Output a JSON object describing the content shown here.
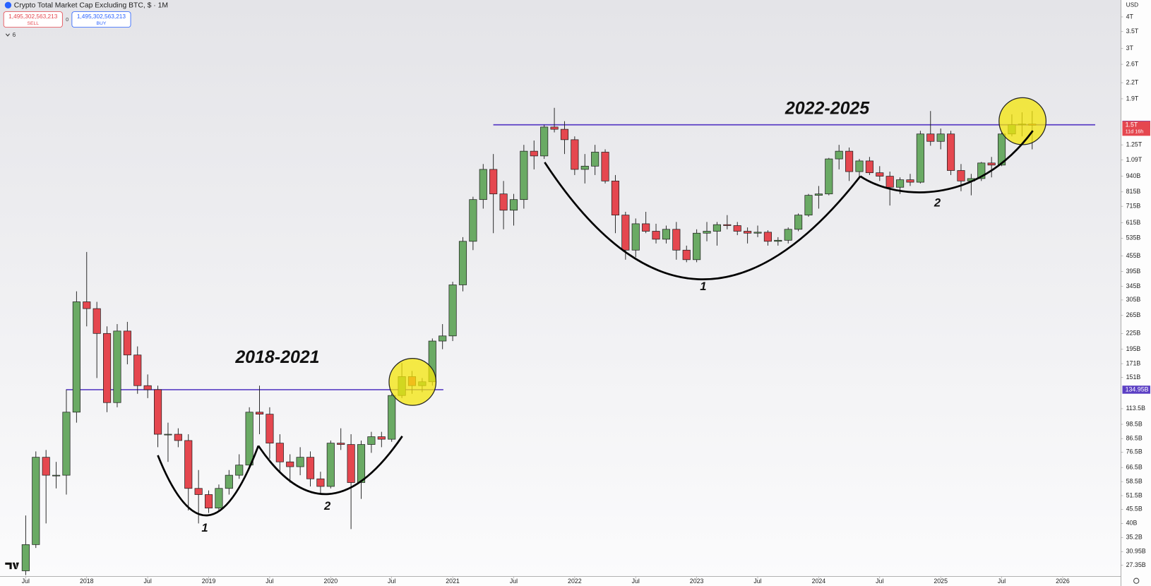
{
  "header": {
    "title": "Crypto Total Market Cap Excluding BTC, $ · 1M",
    "sell_price": "1,495,302,563,213",
    "sell_label": "SELL",
    "spread": "0",
    "buy_price": "1,495,302,563,213",
    "buy_label": "BUY",
    "indicators": "6"
  },
  "currency": "USD",
  "chart_data": {
    "type": "candlestick",
    "log_scale": true,
    "grid": false,
    "up_color": "#6aaa64",
    "down_color": "#e5474f",
    "border_color": "#1e1e1e",
    "x": [
      "2017-07",
      "2017-08",
      "2017-09",
      "2017-10",
      "2017-11",
      "2017-12",
      "2018-01",
      "2018-02",
      "2018-03",
      "2018-04",
      "2018-05",
      "2018-06",
      "2018-07",
      "2018-08",
      "2018-09",
      "2018-10",
      "2018-11",
      "2018-12",
      "2019-01",
      "2019-02",
      "2019-03",
      "2019-04",
      "2019-05",
      "2019-06",
      "2019-07",
      "2019-08",
      "2019-09",
      "2019-10",
      "2019-11",
      "2019-12",
      "2020-01",
      "2020-02",
      "2020-03",
      "2020-04",
      "2020-05",
      "2020-06",
      "2020-07",
      "2020-08",
      "2020-09",
      "2020-10",
      "2020-11",
      "2020-12",
      "2021-01",
      "2021-02",
      "2021-03",
      "2021-04",
      "2021-05",
      "2021-06",
      "2021-07",
      "2021-08",
      "2021-09",
      "2021-10",
      "2021-11",
      "2021-12",
      "2022-01",
      "2022-02",
      "2022-03",
      "2022-04",
      "2022-05",
      "2022-06",
      "2022-07",
      "2022-08",
      "2022-09",
      "2022-10",
      "2022-11",
      "2022-12",
      "2023-01",
      "2023-02",
      "2023-03",
      "2023-04",
      "2023-05",
      "2023-06",
      "2023-07",
      "2023-08",
      "2023-09",
      "2023-10",
      "2023-11",
      "2023-12",
      "2024-01",
      "2024-02",
      "2024-03",
      "2024-04",
      "2024-05",
      "2024-06",
      "2024-07",
      "2024-08",
      "2024-09",
      "2024-10",
      "2024-11",
      "2024-12",
      "2025-01",
      "2025-02",
      "2025-03",
      "2025-04",
      "2025-05",
      "2025-06",
      "2025-07",
      "2025-08",
      "2025-09",
      "2025-10"
    ],
    "open": [
      26,
      33,
      73,
      62,
      62,
      110,
      300,
      282,
      225,
      120,
      230,
      185,
      140,
      135,
      90,
      90,
      85,
      55,
      52,
      46,
      55,
      62,
      68,
      110,
      108,
      83,
      70,
      67,
      73,
      60,
      56,
      83,
      82,
      58,
      82,
      88,
      86,
      128,
      152,
      140,
      145,
      210,
      220,
      350,
      520,
      760,
      1000,
      800,
      690,
      760,
      1180,
      1130,
      1470,
      1440,
      1310,
      1000,
      1030,
      1170,
      900,
      660,
      480,
      610,
      570,
      530,
      580,
      480,
      440,
      560,
      570,
      605,
      600,
      570,
      560,
      565,
      520,
      525,
      580,
      660,
      790,
      800,
      1100,
      1180,
      980,
      1080,
      970,
      940,
      850,
      910,
      890,
      1380,
      1290,
      1380,
      990,
      900,
      920,
      1060,
      1040,
      1380,
      1500,
      1510
    ],
    "high": [
      43,
      77,
      78,
      70,
      135,
      330,
      472,
      300,
      240,
      245,
      250,
      200,
      155,
      140,
      100,
      95,
      90,
      65,
      54,
      57,
      65,
      75,
      115,
      140,
      115,
      90,
      75,
      80,
      77,
      64,
      85,
      95,
      90,
      85,
      92,
      92,
      130,
      172,
      160,
      150,
      215,
      245,
      360,
      540,
      780,
      1050,
      1150,
      900,
      800,
      1250,
      1300,
      1500,
      1750,
      1550,
      1350,
      1150,
      1250,
      1200,
      950,
      680,
      640,
      680,
      610,
      600,
      620,
      500,
      580,
      620,
      620,
      660,
      620,
      590,
      600,
      575,
      540,
      590,
      670,
      800,
      860,
      1110,
      1250,
      1220,
      1100,
      1120,
      1030,
      980,
      930,
      960,
      1420,
      1700,
      1450,
      1420,
      1050,
      960,
      1070,
      1120,
      1400,
      1650,
      1680,
      1700
    ],
    "low": [
      25,
      32,
      40,
      55,
      52,
      100,
      240,
      150,
      110,
      115,
      170,
      130,
      125,
      80,
      70,
      80,
      45,
      40,
      44,
      45,
      52,
      60,
      66,
      90,
      72,
      64,
      58,
      62,
      56,
      52,
      55,
      78,
      38,
      50,
      76,
      80,
      84,
      125,
      130,
      132,
      140,
      195,
      210,
      330,
      480,
      700,
      560,
      580,
      600,
      700,
      1000,
      1100,
      1400,
      1150,
      950,
      880,
      950,
      880,
      560,
      440,
      450,
      560,
      510,
      510,
      440,
      430,
      430,
      520,
      500,
      580,
      550,
      510,
      540,
      500,
      500,
      510,
      570,
      650,
      700,
      790,
      1000,
      900,
      920,
      950,
      900,
      720,
      800,
      860,
      880,
      1240,
      1200,
      950,
      820,
      790,
      900,
      930,
      1030,
      1350,
      1350,
      1200
    ],
    "close": [
      33,
      73,
      62,
      62,
      110,
      300,
      282,
      225,
      120,
      230,
      185,
      140,
      135,
      90,
      90,
      85,
      55,
      52,
      46,
      55,
      62,
      68,
      110,
      108,
      83,
      70,
      67,
      73,
      60,
      56,
      83,
      82,
      58,
      82,
      88,
      86,
      128,
      152,
      140,
      145,
      210,
      220,
      350,
      520,
      760,
      1000,
      800,
      690,
      760,
      1180,
      1130,
      1470,
      1440,
      1310,
      1000,
      1030,
      1170,
      900,
      660,
      480,
      610,
      570,
      530,
      580,
      480,
      440,
      560,
      570,
      605,
      600,
      570,
      560,
      565,
      520,
      525,
      580,
      660,
      790,
      800,
      1100,
      1180,
      980,
      1080,
      970,
      940,
      850,
      910,
      890,
      1380,
      1290,
      1380,
      990,
      900,
      920,
      1060,
      1040,
      1380,
      1500,
      1510,
      1495
    ],
    "ylim": [
      24.7,
      4665
    ],
    "yticks": [
      {
        "value": 4000,
        "label": "4T"
      },
      {
        "value": 3500,
        "label": "3.5T"
      },
      {
        "value": 3000,
        "label": "3T"
      },
      {
        "value": 2600,
        "label": "2.6T"
      },
      {
        "value": 2200,
        "label": "2.2T"
      },
      {
        "value": 1900,
        "label": "1.9T"
      },
      {
        "value": 1250,
        "label": "1.25T"
      },
      {
        "value": 1090,
        "label": "1.09T"
      },
      {
        "value": 940,
        "label": "940B"
      },
      {
        "value": 815,
        "label": "815B"
      },
      {
        "value": 715,
        "label": "715B"
      },
      {
        "value": 615,
        "label": "615B"
      },
      {
        "value": 535,
        "label": "535B"
      },
      {
        "value": 455,
        "label": "455B"
      },
      {
        "value": 395,
        "label": "395B"
      },
      {
        "value": 345,
        "label": "345B"
      },
      {
        "value": 305,
        "label": "305B"
      },
      {
        "value": 265,
        "label": "265B"
      },
      {
        "value": 225,
        "label": "225B"
      },
      {
        "value": 195,
        "label": "195B"
      },
      {
        "value": 171,
        "label": "171B"
      },
      {
        "value": 151,
        "label": "151B"
      },
      {
        "value": 113.5,
        "label": "113.5B"
      },
      {
        "value": 98.5,
        "label": "98.5B"
      },
      {
        "value": 86.5,
        "label": "86.5B"
      },
      {
        "value": 76.5,
        "label": "76.5B"
      },
      {
        "value": 66.5,
        "label": "66.5B"
      },
      {
        "value": 58.5,
        "label": "58.5B"
      },
      {
        "value": 51.5,
        "label": "51.5B"
      },
      {
        "value": 45.5,
        "label": "45.5B"
      },
      {
        "value": 40,
        "label": "40B"
      },
      {
        "value": 35.2,
        "label": "35.2B"
      },
      {
        "value": 30.95,
        "label": "30.95B"
      },
      {
        "value": 27.35,
        "label": "27.35B"
      }
    ],
    "xticks": [
      {
        "value": "2017-07",
        "label": "Jul"
      },
      {
        "value": "2018-01",
        "label": "2018"
      },
      {
        "value": "2018-07",
        "label": "Jul"
      },
      {
        "value": "2019-01",
        "label": "2019"
      },
      {
        "value": "2019-07",
        "label": "Jul"
      },
      {
        "value": "2020-01",
        "label": "2020"
      },
      {
        "value": "2020-07",
        "label": "Jul"
      },
      {
        "value": "2021-01",
        "label": "2021"
      },
      {
        "value": "2021-07",
        "label": "Jul"
      },
      {
        "value": "2022-01",
        "label": "2022"
      },
      {
        "value": "2022-07",
        "label": "Jul"
      },
      {
        "value": "2023-01",
        "label": "2023"
      },
      {
        "value": "2023-07",
        "label": "Jul"
      },
      {
        "value": "2024-01",
        "label": "2024"
      },
      {
        "value": "2024-07",
        "label": "Jul"
      },
      {
        "value": "2025-01",
        "label": "2025"
      },
      {
        "value": "2025-07",
        "label": "Jul"
      },
      {
        "value": "2026-01",
        "label": "2026"
      }
    ],
    "level_color": "#5b3fc4",
    "levels": [
      {
        "value": 134.95,
        "label": "134.95B"
      },
      {
        "value": 1500,
        "label": "1.5T"
      }
    ],
    "last_price": {
      "value": 1495.302563213,
      "label": "1.5T",
      "countdown": "11d 16h"
    },
    "annotations": [
      "2018-2021",
      "1",
      "2",
      "2022-2025",
      "1",
      "2"
    ]
  }
}
